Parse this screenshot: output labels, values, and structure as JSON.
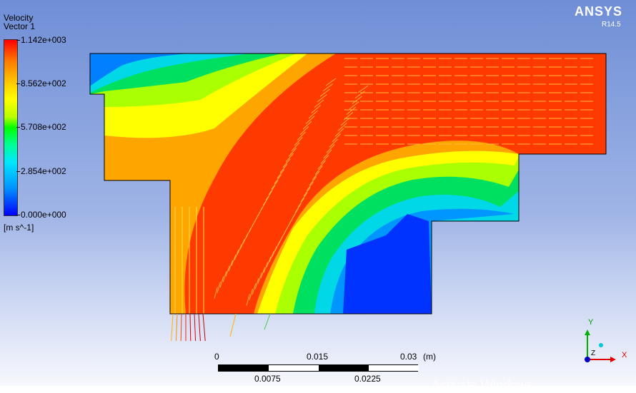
{
  "legend": {
    "title": "Velocity",
    "subtitle": "Vector 1",
    "labels": [
      "1.142e+003",
      "8.562e+002",
      "5.708e+002",
      "2.854e+002",
      "0.000e+000"
    ],
    "units": "[m s^-1]"
  },
  "branding": {
    "logo": "ANSYS",
    "version": "R14.5"
  },
  "scale": {
    "top_labels": [
      "0",
      "0.015",
      "0.03"
    ],
    "unit": "(m)",
    "bottom_labels": [
      "0.0075",
      "0.0225"
    ]
  },
  "axes": {
    "y": "Y",
    "z": "Z",
    "x": "X"
  },
  "watermark": "Activate Windows",
  "colors": {
    "red": "#ff3a00",
    "orange": "#ffa500",
    "yellow": "#ffff00",
    "lime": "#aaff00",
    "green": "#00e000",
    "cyan": "#00d8e8",
    "lightblue": "#0096ff",
    "blue": "#0033ff"
  }
}
